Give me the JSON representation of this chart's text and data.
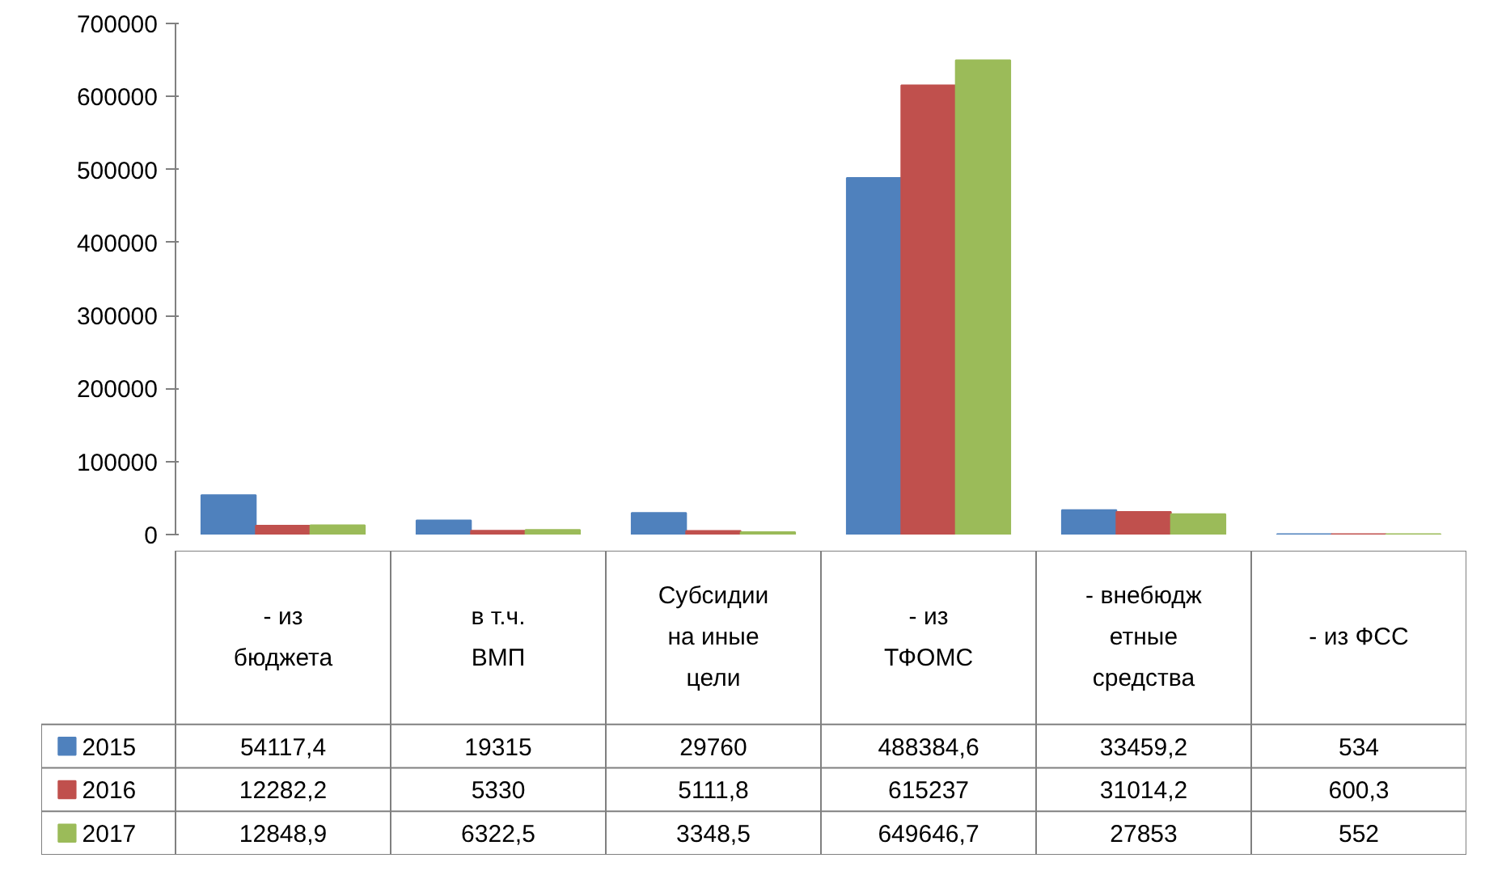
{
  "chart_data": {
    "type": "bar",
    "categories": [
      "- из бюджета",
      "в т.ч. ВМП",
      "Субсидии на иные цели",
      "- из ТФОМС",
      "- внебюджетные средства",
      "- из ФСС"
    ],
    "series": [
      {
        "name": "2015",
        "color": "#4f81bd",
        "values": [
          54117.4,
          19315,
          29760,
          488384.6,
          33459.2,
          534
        ],
        "value_labels": [
          "54117,4",
          "19315",
          "29760",
          "488384,6",
          "33459,2",
          "534"
        ]
      },
      {
        "name": "2016",
        "color": "#c0504d",
        "values": [
          12282.2,
          5330,
          5111.8,
          615237,
          31014.2,
          600.3
        ],
        "value_labels": [
          "12282,2",
          "5330",
          "5111,8",
          "615237",
          "31014,2",
          "600,3"
        ]
      },
      {
        "name": "2017",
        "color": "#9bbb59",
        "values": [
          12848.9,
          6322.5,
          3348.5,
          649646.7,
          27853,
          552
        ],
        "value_labels": [
          "12848,9",
          "6322,5",
          "3348,5",
          "649646,7",
          "27853",
          "552"
        ]
      }
    ],
    "ylim": [
      0,
      700000
    ],
    "yticks": [
      0,
      100000,
      200000,
      300000,
      400000,
      500000,
      600000,
      700000
    ],
    "legend": "bottom"
  }
}
